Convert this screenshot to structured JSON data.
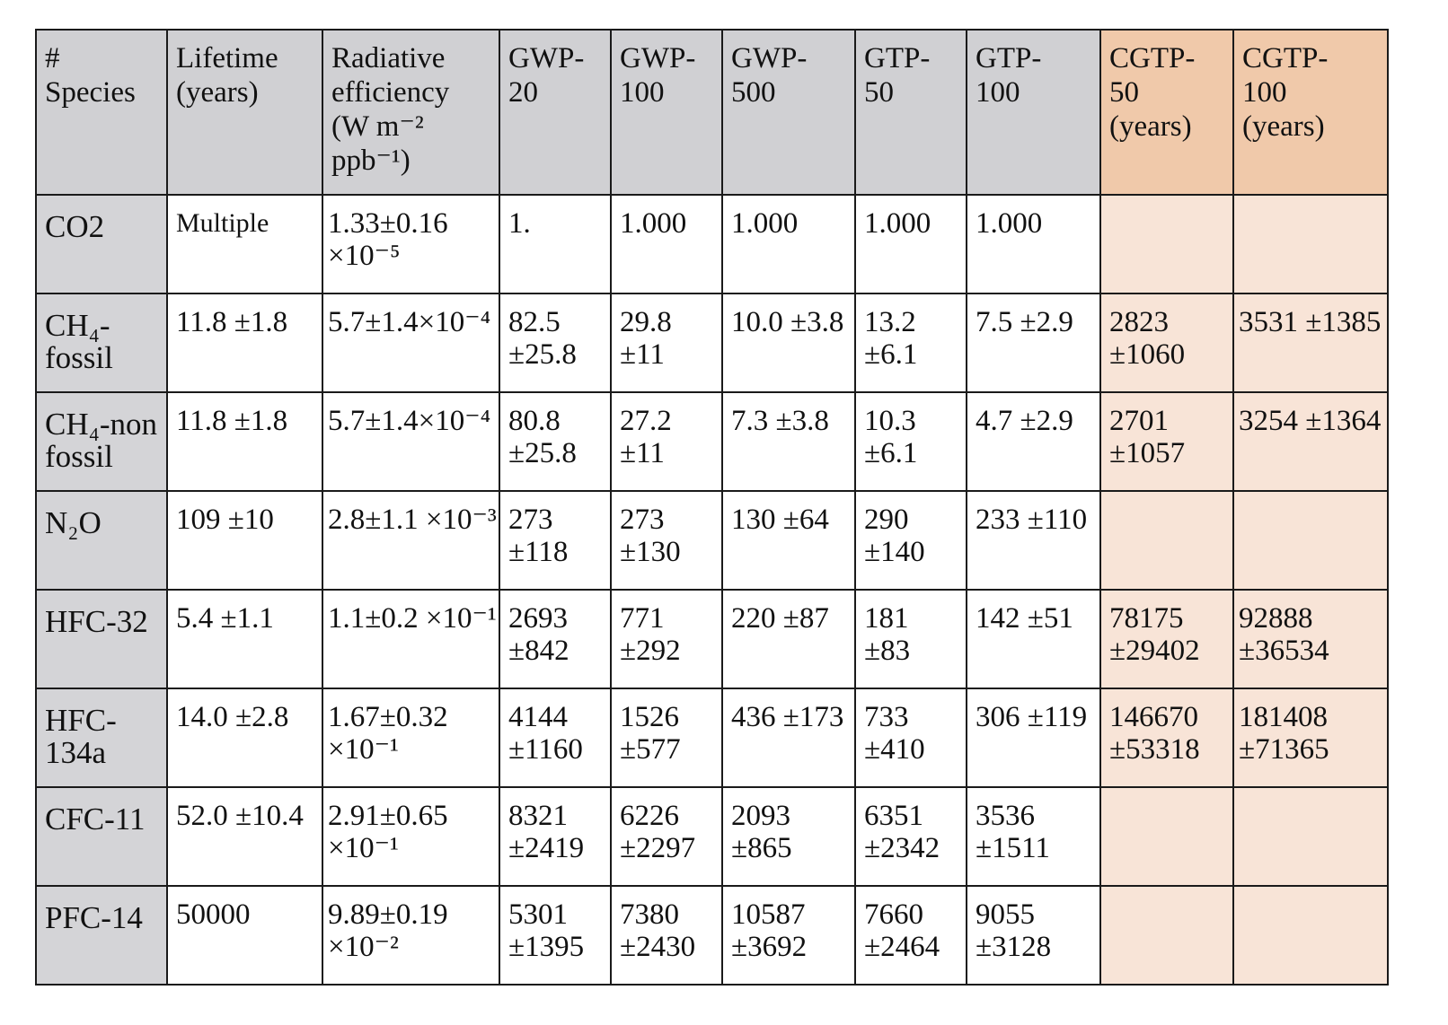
{
  "table": {
    "headers": [
      {
        "lines": [
          "#",
          "Species"
        ]
      },
      {
        "lines": [
          "Lifetime",
          "(years)"
        ]
      },
      {
        "lines": [
          "Radiative",
          "efficiency",
          "(W m⁻²",
          "ppb⁻¹)"
        ]
      },
      {
        "lines": [
          "GWP-",
          "20"
        ]
      },
      {
        "lines": [
          "GWP-",
          "100"
        ]
      },
      {
        "lines": [
          "GWP-",
          "500"
        ]
      },
      {
        "lines": [
          "GTP-",
          "50"
        ]
      },
      {
        "lines": [
          "GTP-",
          "100"
        ]
      },
      {
        "lines": [
          "CGTP-",
          "50",
          "(years)"
        ]
      },
      {
        "lines": [
          "CGTP-",
          "100",
          "(years)"
        ]
      }
    ],
    "rows": [
      {
        "species": [
          "CO2"
        ],
        "lifetime": [
          "Multiple"
        ],
        "radiative_efficiency": [
          "1.33±0.16",
          "×10⁻⁵"
        ],
        "gwp20": [
          "1."
        ],
        "gwp100": [
          "1.000"
        ],
        "gwp500": [
          "1.000"
        ],
        "gtp50": [
          "1.000"
        ],
        "gtp100": [
          "1.000"
        ],
        "cgtp50": [],
        "cgtp100": []
      },
      {
        "species": [
          "CH₄-",
          "fossil"
        ],
        "lifetime": [
          "11.8 ±1.8"
        ],
        "radiative_efficiency": [
          "5.7±1.4×10⁻⁴"
        ],
        "gwp20": [
          "82.5",
          "±25.8"
        ],
        "gwp100": [
          "29.8",
          "±11"
        ],
        "gwp500": [
          "10.0 ±3.8"
        ],
        "gtp50": [
          "13.2",
          "±6.1"
        ],
        "gtp100": [
          "7.5 ±2.9"
        ],
        "cgtp50": [
          "2823",
          "±1060"
        ],
        "cgtp100": [
          "3531 ±1385"
        ]
      },
      {
        "species": [
          "CH₄-non",
          "fossil"
        ],
        "lifetime": [
          "11.8 ±1.8"
        ],
        "radiative_efficiency": [
          "5.7±1.4×10⁻⁴"
        ],
        "gwp20": [
          "80.8",
          "±25.8"
        ],
        "gwp100": [
          "27.2",
          "±11"
        ],
        "gwp500": [
          "7.3 ±3.8"
        ],
        "gtp50": [
          "10.3",
          "±6.1"
        ],
        "gtp100": [
          "4.7 ±2.9"
        ],
        "cgtp50": [
          "2701",
          "±1057"
        ],
        "cgtp100": [
          "3254 ±1364"
        ]
      },
      {
        "species": [
          "N₂O"
        ],
        "lifetime": [
          "109 ±10"
        ],
        "radiative_efficiency": [
          "2.8±1.1 ×10⁻³"
        ],
        "gwp20": [
          "273",
          "±118"
        ],
        "gwp100": [
          "273",
          "±130"
        ],
        "gwp500": [
          "130 ±64"
        ],
        "gtp50": [
          "290",
          "±140"
        ],
        "gtp100": [
          "233 ±110"
        ],
        "cgtp50": [],
        "cgtp100": []
      },
      {
        "species": [
          "HFC-32"
        ],
        "lifetime": [
          "5.4 ±1.1"
        ],
        "radiative_efficiency": [
          "1.1±0.2 ×10⁻¹"
        ],
        "gwp20": [
          "2693",
          "±842"
        ],
        "gwp100": [
          "771",
          "±292"
        ],
        "gwp500": [
          "220 ±87"
        ],
        "gtp50": [
          "181",
          "±83"
        ],
        "gtp100": [
          "142 ±51"
        ],
        "cgtp50": [
          "78175",
          "±29402"
        ],
        "cgtp100": [
          "92888",
          "±36534"
        ]
      },
      {
        "species": [
          "HFC-",
          "134a"
        ],
        "lifetime": [
          "14.0 ±2.8"
        ],
        "radiative_efficiency": [
          "1.67±0.32",
          "×10⁻¹"
        ],
        "gwp20": [
          "4144",
          "±1160"
        ],
        "gwp100": [
          "1526",
          "±577"
        ],
        "gwp500": [
          "436 ±173"
        ],
        "gtp50": [
          "733",
          "±410"
        ],
        "gtp100": [
          "306 ±119"
        ],
        "cgtp50": [
          "146670",
          "±53318"
        ],
        "cgtp100": [
          "181408",
          "±71365"
        ]
      },
      {
        "species": [
          "CFC-11"
        ],
        "lifetime": [
          "52.0 ±10.4"
        ],
        "radiative_efficiency": [
          "2.91±0.65",
          "×10⁻¹"
        ],
        "gwp20": [
          "8321",
          "±2419"
        ],
        "gwp100": [
          "6226",
          "±2297"
        ],
        "gwp500": [
          "2093",
          "±865"
        ],
        "gtp50": [
          "6351",
          "±2342"
        ],
        "gtp100": [
          "3536",
          "±1511"
        ],
        "cgtp50": [],
        "cgtp100": []
      },
      {
        "species": [
          "PFC-14"
        ],
        "lifetime": [
          "50000"
        ],
        "radiative_efficiency": [
          "9.89±0.19",
          "×10⁻²"
        ],
        "gwp20": [
          "5301",
          "±1395"
        ],
        "gwp100": [
          "7380",
          "±2430"
        ],
        "gwp500": [
          "10587",
          "±3692"
        ],
        "gtp50": [
          "7660",
          "±2464"
        ],
        "gtp100": [
          "9055",
          "±3128"
        ],
        "cgtp50": [],
        "cgtp100": []
      }
    ]
  }
}
